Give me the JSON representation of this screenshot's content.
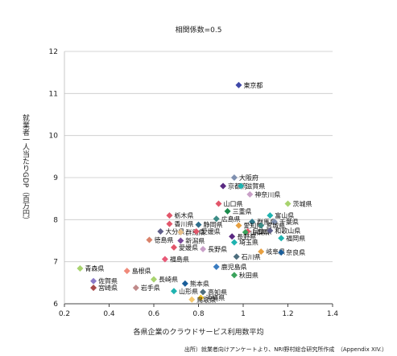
{
  "chart_data": {
    "type": "scatter",
    "subtitle": "相関係数=0.5",
    "xlabel": "各県企業のクラウドサービス利用数平均",
    "ylabel": "就業者一人当たりGDP（百万円）",
    "source": "出所）就業者向けアンケートより、NRI野村総合研究所作成　（Appendix XIV.）",
    "xlim": [
      0.2,
      1.4
    ],
    "ylim": [
      6,
      12
    ],
    "x_ticks": [
      "0.2",
      "0.4",
      "0.6",
      "0.8",
      "1",
      "1.2",
      "1.4"
    ],
    "y_ticks": [
      "6",
      "7",
      "8",
      "9",
      "10",
      "11",
      "12"
    ],
    "grid": "horizontal",
    "points": [
      {
        "label": "東京都",
        "x": 0.98,
        "y": 11.2,
        "color": "#3f48a8"
      },
      {
        "label": "大阪府",
        "x": 0.96,
        "y": 9.0,
        "color": "#7f90b0"
      },
      {
        "label": "京都府",
        "x": 0.91,
        "y": 8.8,
        "color": "#5a2a82"
      },
      {
        "label": "滋賀県",
        "x": 0.99,
        "y": 8.8,
        "color": "#1fb3b0"
      },
      {
        "label": "神奈川県",
        "x": 1.03,
        "y": 8.6,
        "color": "#c9a0c8"
      },
      {
        "label": "山口県",
        "x": 0.89,
        "y": 8.38,
        "color": "#e2566a"
      },
      {
        "label": "茨城県",
        "x": 1.2,
        "y": 8.38,
        "color": "#a8d36e"
      },
      {
        "label": "三重県",
        "x": 0.93,
        "y": 8.2,
        "color": "#1c8a4c"
      },
      {
        "label": "栃木県",
        "x": 0.67,
        "y": 8.1,
        "color": "#e2566a"
      },
      {
        "label": "富山県",
        "x": 1.12,
        "y": 8.1,
        "color": "#1fb3b0"
      },
      {
        "label": "広島県",
        "x": 0.88,
        "y": 8.02,
        "color": "#3c8c86"
      },
      {
        "label": "群馬県",
        "x": 1.04,
        "y": 7.95,
        "color": "#2f7a8c"
      },
      {
        "label": "千葉県",
        "x": 1.14,
        "y": 7.95,
        "color": "#7f90b0"
      },
      {
        "label": "香川県",
        "x": 0.67,
        "y": 7.9,
        "color": "#e2566a"
      },
      {
        "label": "静岡県",
        "x": 0.8,
        "y": 7.88,
        "color": "#2f6e8c"
      },
      {
        "label": "愛知県",
        "x": 0.98,
        "y": 7.86,
        "color": "#e8a040"
      },
      {
        "label": "宮城県",
        "x": 1.08,
        "y": 7.86,
        "color": "#3c8c86"
      },
      {
        "label": "兵庫県",
        "x": 1.02,
        "y": 7.72,
        "color": "#e2566a"
      },
      {
        "label": "山梨県",
        "x": 1.01,
        "y": 7.7,
        "color": "#3ba35c"
      },
      {
        "label": "和歌山県",
        "x": 1.12,
        "y": 7.74,
        "color": "#5f5f8a"
      },
      {
        "label": "大分県",
        "x": 0.63,
        "y": 7.72,
        "color": "#5f5f8a"
      },
      {
        "label": "群馬県",
        "x": 0.72,
        "y": 7.7,
        "color": "#e8c088"
      },
      {
        "label": "愛媛県",
        "x": 0.79,
        "y": 7.72,
        "color": "#e2566a"
      },
      {
        "label": "長野県",
        "x": 0.95,
        "y": 7.6,
        "color": "#5a2a82"
      },
      {
        "label": "福岡県",
        "x": 1.17,
        "y": 7.56,
        "color": "#1fb3b0"
      },
      {
        "label": "徳島県",
        "x": 0.58,
        "y": 7.52,
        "color": "#d9826a"
      },
      {
        "label": "新潟県",
        "x": 0.72,
        "y": 7.5,
        "color": "#7a4a9a"
      },
      {
        "label": "埼玉県",
        "x": 0.96,
        "y": 7.46,
        "color": "#1fb3b0"
      },
      {
        "label": "愛媛県",
        "x": 0.69,
        "y": 7.34,
        "color": "#e2566a"
      },
      {
        "label": "長野県",
        "x": 0.82,
        "y": 7.3,
        "color": "#c9a0c8"
      },
      {
        "label": "岐阜県",
        "x": 1.08,
        "y": 7.24,
        "color": "#e8a040"
      },
      {
        "label": "奈良県",
        "x": 1.17,
        "y": 7.22,
        "color": "#1a5e9a"
      },
      {
        "label": "石川県",
        "x": 0.97,
        "y": 7.12,
        "color": "#4e6e7e"
      },
      {
        "label": "福島県",
        "x": 0.65,
        "y": 7.06,
        "color": "#e85a78"
      },
      {
        "label": "鹿児島県",
        "x": 0.88,
        "y": 6.88,
        "color": "#3a7cc0"
      },
      {
        "label": "青森県",
        "x": 0.27,
        "y": 6.84,
        "color": "#a8d36e"
      },
      {
        "label": "島根県",
        "x": 0.48,
        "y": 6.78,
        "color": "#f08a7a"
      },
      {
        "label": "秋田県",
        "x": 0.96,
        "y": 6.68,
        "color": "#3ba35c"
      },
      {
        "label": "長崎県",
        "x": 0.6,
        "y": 6.58,
        "color": "#a8d36e"
      },
      {
        "label": "佐賀県",
        "x": 0.33,
        "y": 6.54,
        "color": "#8a7ac8"
      },
      {
        "label": "熊本県",
        "x": 0.74,
        "y": 6.48,
        "color": "#1a5e9a"
      },
      {
        "label": "宮崎県",
        "x": 0.33,
        "y": 6.38,
        "color": "#a84a4a"
      },
      {
        "label": "岩手県",
        "x": 0.52,
        "y": 6.38,
        "color": "#c08a8a"
      },
      {
        "label": "山形県",
        "x": 0.69,
        "y": 6.3,
        "color": "#1fb3b0"
      },
      {
        "label": "高知県",
        "x": 0.82,
        "y": 6.28,
        "color": "#4e6e7e"
      },
      {
        "label": "沖縄県",
        "x": 0.81,
        "y": 6.14,
        "color": "#f0c020"
      },
      {
        "label": "鳥取県",
        "x": 0.77,
        "y": 6.1,
        "color": "#f5c870"
      }
    ]
  }
}
